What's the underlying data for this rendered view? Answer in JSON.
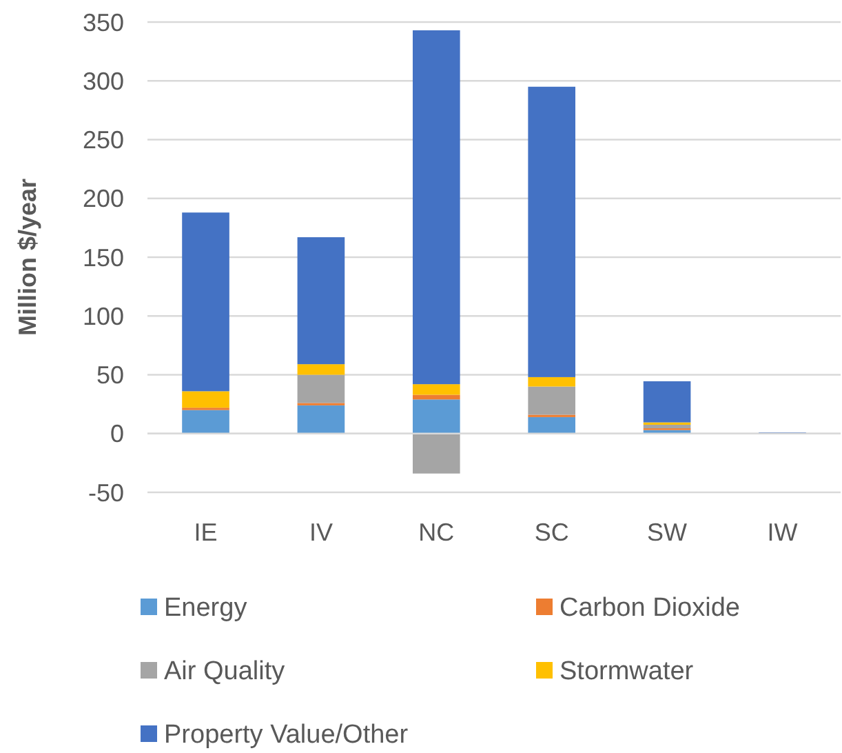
{
  "chart_data": {
    "type": "bar",
    "stacked": true,
    "ylabel": "Million $/year",
    "categories": [
      "IE",
      "IV",
      "NC",
      "SC",
      "SW",
      "IW"
    ],
    "series": [
      {
        "name": "Energy",
        "color": "#5b9bd5",
        "values": [
          20,
          24,
          29,
          14,
          3,
          0
        ]
      },
      {
        "name": "Carbon Dioxide",
        "color": "#ed7d31",
        "values": [
          2,
          2,
          4,
          2,
          1.5,
          0
        ]
      },
      {
        "name": "Air Quality",
        "color": "#a5a5a5",
        "values": [
          0,
          24,
          -34,
          24,
          3,
          0
        ]
      },
      {
        "name": "Stormwater",
        "color": "#ffc000",
        "values": [
          14,
          9,
          9,
          8,
          2,
          0
        ]
      },
      {
        "name": "Property Value/Other",
        "color": "#4472c4",
        "values": [
          152,
          108,
          301,
          247,
          35,
          1
        ]
      }
    ],
    "ylim": [
      -50,
      350
    ],
    "yticks": [
      -50,
      0,
      50,
      100,
      150,
      200,
      250,
      300,
      350
    ],
    "grid": "y",
    "legend": "bottom"
  }
}
